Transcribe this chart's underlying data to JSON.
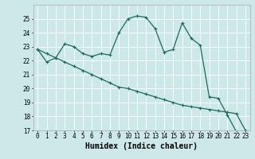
{
  "xlabel": "Humidex (Indice chaleur)",
  "bg_color": "#cce8e8",
  "grid_color": "#ffffff",
  "line_color": "#1a6b5a",
  "x_line1": [
    0,
    1,
    2,
    3,
    4,
    5,
    6,
    7,
    8,
    9,
    10,
    11,
    12,
    13,
    14,
    15,
    16,
    17,
    18,
    19,
    20,
    21,
    22,
    23
  ],
  "y_line1": [
    22.8,
    21.9,
    22.2,
    23.2,
    23.0,
    22.5,
    22.3,
    22.5,
    22.4,
    24.0,
    25.0,
    25.2,
    25.1,
    24.3,
    22.6,
    22.8,
    24.7,
    23.6,
    23.1,
    19.4,
    19.3,
    18.1,
    16.9,
    16.7
  ],
  "x_line2": [
    0,
    1,
    2,
    3,
    4,
    5,
    6,
    7,
    8,
    9,
    10,
    11,
    12,
    13,
    14,
    15,
    16,
    17,
    18,
    19,
    20,
    21,
    22,
    23
  ],
  "y_line2": [
    22.8,
    22.5,
    22.2,
    21.9,
    21.6,
    21.3,
    21.0,
    20.7,
    20.4,
    20.1,
    20.0,
    19.8,
    19.6,
    19.4,
    19.2,
    19.0,
    18.8,
    18.7,
    18.6,
    18.5,
    18.4,
    18.3,
    18.2,
    17.0
  ],
  "ylim": [
    17,
    26
  ],
  "xlim": [
    -0.5,
    23.5
  ],
  "yticks": [
    17,
    18,
    19,
    20,
    21,
    22,
    23,
    24,
    25
  ],
  "xtick_labels": [
    "0",
    "1",
    "2",
    "3",
    "4",
    "5",
    "6",
    "7",
    "8",
    "9",
    "10",
    "11",
    "12",
    "13",
    "14",
    "15",
    "16",
    "17",
    "18",
    "19",
    "20",
    "21",
    "22",
    "23"
  ],
  "marker": "+",
  "markersize": 3,
  "markeredgewidth": 0.8,
  "linewidth": 0.9,
  "xlabel_fontsize": 7,
  "tick_fontsize": 5.5
}
